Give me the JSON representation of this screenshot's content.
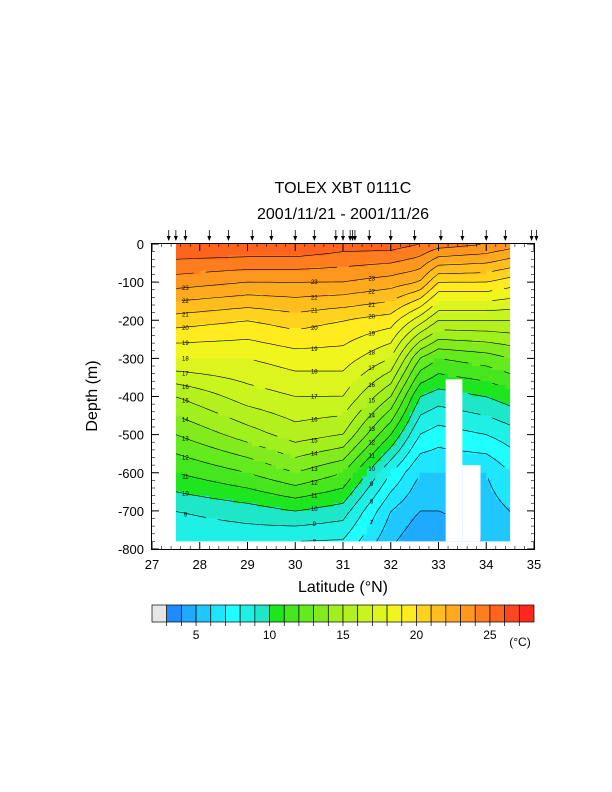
{
  "chart_data": {
    "type": "heatmap",
    "title": "TOLEX XBT 0111C",
    "subtitle": "2001/11/21 - 2001/11/26",
    "xlabel": "Latitude (°N)",
    "ylabel": "Depth (m)",
    "xlim": [
      27,
      35
    ],
    "ylim": [
      -800,
      0
    ],
    "x_ticks": [
      "27",
      "28",
      "29",
      "30",
      "31",
      "32",
      "33",
      "34",
      "35"
    ],
    "y_ticks": [
      "0",
      "-100",
      "-200",
      "-300",
      "-400",
      "-500",
      "-600",
      "-700",
      "-800"
    ],
    "colorbar": {
      "unit": "(°C)",
      "tick_labels": [
        "5",
        "10",
        "15",
        "20",
        "25"
      ],
      "levels": [
        3,
        4,
        5,
        6,
        7,
        8,
        9,
        10,
        11,
        12,
        13,
        14,
        15,
        16,
        17,
        18,
        19,
        20,
        21,
        22,
        23,
        24,
        25,
        26,
        27
      ],
      "colors": [
        "#e6e6e6",
        "#1e8cff",
        "#1eaaff",
        "#1ec8ff",
        "#1ee6ff",
        "#1effff",
        "#1ef0e6",
        "#1ee6c8",
        "#1ee61e",
        "#46e61e",
        "#64eb1e",
        "#82eb1e",
        "#a0f01e",
        "#b4f01e",
        "#c8f51e",
        "#dcf51e",
        "#f0f51e",
        "#ffeb1e",
        "#ffd21e",
        "#ffbe1e",
        "#ffaa1e",
        "#ff961e",
        "#ff7d1e",
        "#ff641e",
        "#ff461e",
        "#ff281e"
      ]
    },
    "xbt_stations_lat": [
      27.35,
      27.5,
      27.7,
      28.2,
      28.6,
      29.1,
      29.5,
      30.0,
      30.4,
      30.85,
      31.0,
      31.15,
      31.2,
      31.25,
      31.55,
      32.0,
      32.5,
      33.05,
      33.5,
      34.0,
      34.4,
      34.95,
      35.05
    ],
    "profiles": [
      {
        "lat": 27.5,
        "temps": [
          26.0,
          23.5,
          20.5,
          18.0,
          15.0,
          13.0,
          11.0,
          9.0,
          8.0
        ]
      },
      {
        "lat": 29.0,
        "temps": [
          26.0,
          23.0,
          20.0,
          18.0,
          16.5,
          14.5,
          12.0,
          9.5,
          8.0
        ]
      },
      {
        "lat": 30.0,
        "temps": [
          26.0,
          23.0,
          20.5,
          18.5,
          17.0,
          15.5,
          13.0,
          10.0,
          7.5
        ]
      },
      {
        "lat": 31.0,
        "temps": [
          25.5,
          23.0,
          20.0,
          18.5,
          17.0,
          15.0,
          12.0,
          9.5,
          7.5
        ]
      },
      {
        "lat": 32.0,
        "temps": [
          25.5,
          22.5,
          19.5,
          17.0,
          14.0,
          11.0,
          8.0,
          6.0,
          5.0
        ]
      },
      {
        "lat": 32.6,
        "temps": [
          25.0,
          22.0,
          17.5,
          13.0,
          10.0,
          8.0,
          6.0,
          5.0,
          4.0
        ]
      },
      {
        "lat": 33.0,
        "temps": [
          24.5,
          20.0,
          16.0,
          12.0,
          9.5,
          7.5,
          6.0,
          5.0,
          4.0
        ]
      },
      {
        "lat": 34.0,
        "temps": [
          24.0,
          20.0,
          16.0,
          12.5,
          10.0,
          8.0,
          6.0,
          5.5,
          5.0
        ]
      },
      {
        "lat": 34.5,
        "temps": [
          23.5,
          19.5,
          16.0,
          13.0,
          10.5,
          8.5,
          7.0,
          6.0,
          5.5
        ]
      }
    ],
    "contour_labels": [
      "23",
      "21",
      "20",
      "19",
      "18",
      "17",
      "16",
      "15",
      "14",
      "13",
      "12",
      "11",
      "10",
      "9",
      "8",
      "7",
      "6",
      "5",
      "4",
      "22"
    ],
    "grid": false
  }
}
